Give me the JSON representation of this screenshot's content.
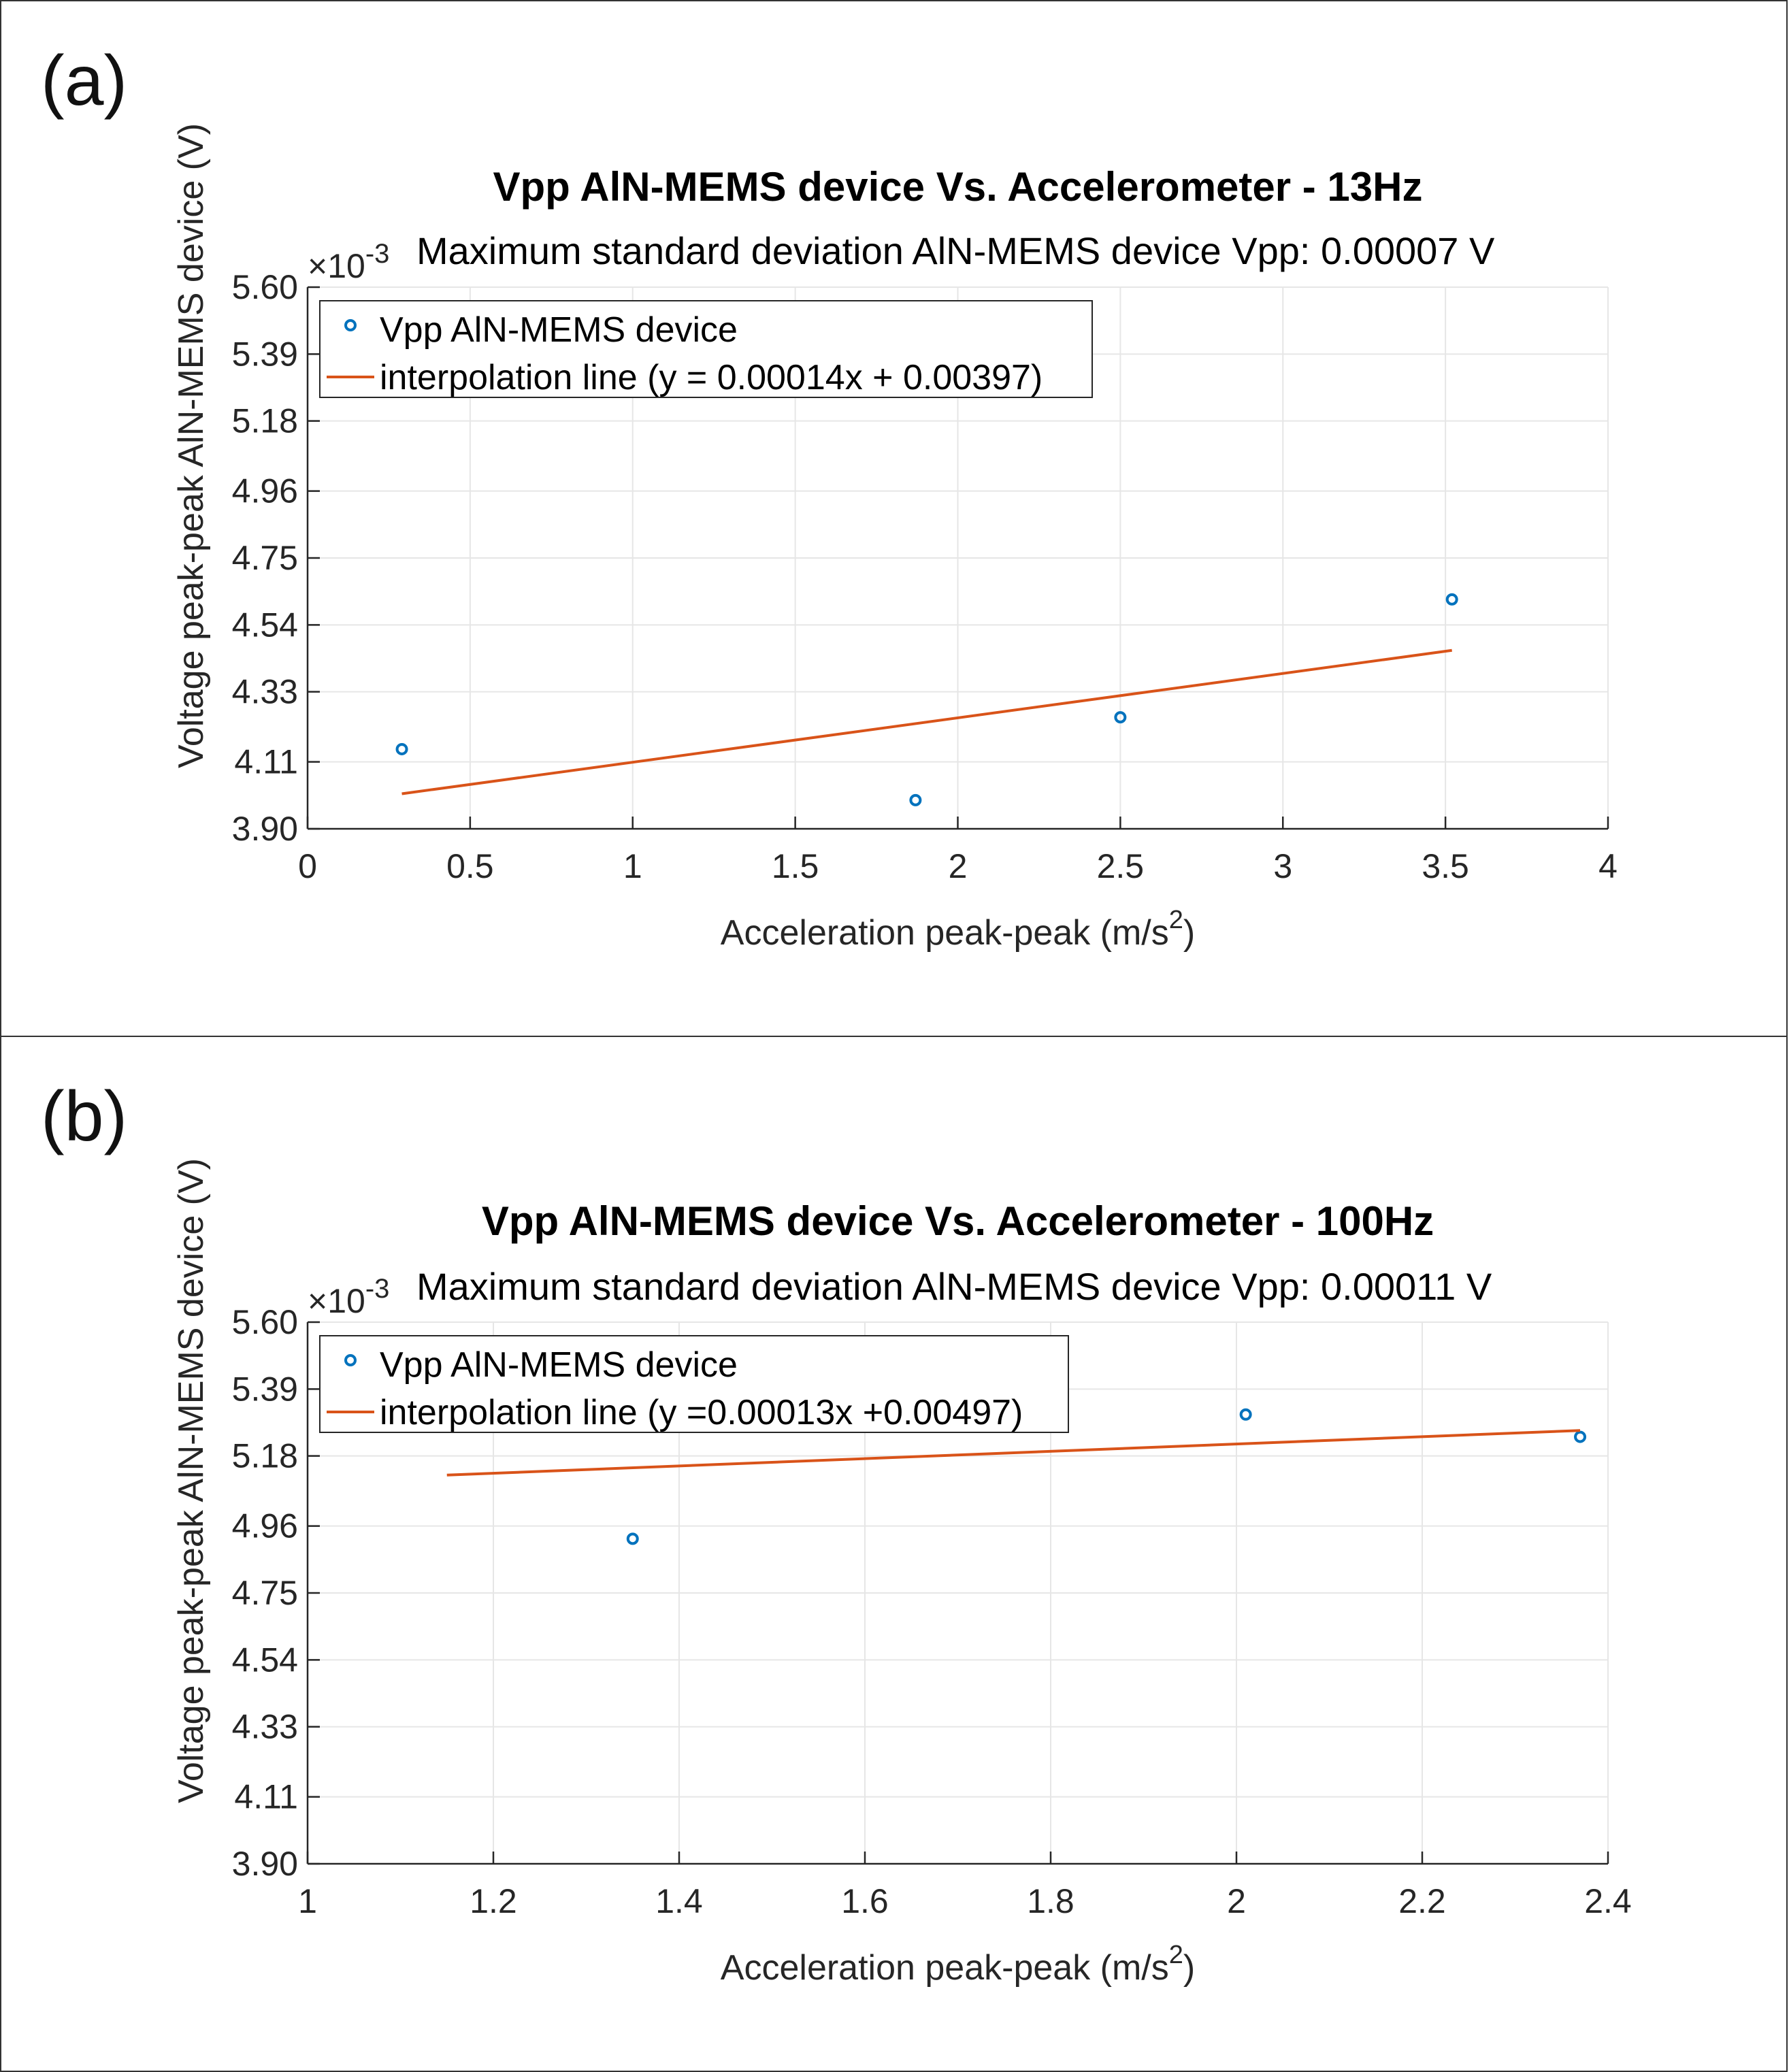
{
  "chart_data": [
    {
      "panel_label": "(a)",
      "type": "scatter",
      "title": "Vpp AlN-MEMS device Vs. Accelerometer - 13Hz",
      "subtitle": "Maximum standard deviation AlN-MEMS device Vpp: 0.00007 V",
      "xlabel": "Acceleration peak-peak (m/s",
      "xlabel_sup": "2",
      "xlabel_end": ")",
      "ylabel": "Voltage peak-peak AlN-MEMS device (V)",
      "y_exponent_base": "×10",
      "y_exponent_power": "-3",
      "xlim": [
        0,
        4
      ],
      "ylim": [
        3.9,
        5.6
      ],
      "xticks": [
        0,
        0.5,
        1,
        1.5,
        2,
        2.5,
        3,
        3.5,
        4
      ],
      "xtick_labels": [
        "0",
        "0.5",
        "1",
        "1.5",
        "2",
        "2.5",
        "3",
        "3.5",
        "4"
      ],
      "yticks": [
        3.9,
        4.11,
        4.33,
        4.54,
        4.75,
        4.96,
        5.18,
        5.39,
        5.6
      ],
      "ytick_labels": [
        "3.90",
        "4.11",
        "4.33",
        "4.54",
        "4.75",
        "4.96",
        "5.18",
        "5.39",
        "5.60"
      ],
      "grid": true,
      "legend_position": "top-left",
      "series": [
        {
          "name": "Vpp AlN-MEMS device",
          "kind": "markers",
          "color": "#0072BD",
          "x": [
            0.29,
            1.87,
            2.5,
            3.52
          ],
          "y": [
            4.15,
            3.99,
            4.25,
            4.62
          ]
        },
        {
          "name": "interpolation line (y = 0.00014x + 0.00397)",
          "kind": "line",
          "color": "#D95319",
          "x": [
            0.29,
            3.52
          ],
          "y": [
            4.01,
            4.46
          ]
        }
      ]
    },
    {
      "panel_label": "(b)",
      "type": "scatter",
      "title": "Vpp AlN-MEMS device Vs. Accelerometer - 100Hz",
      "subtitle": "Maximum standard deviation AlN-MEMS device Vpp: 0.00011 V",
      "xlabel": "Acceleration peak-peak (m/s",
      "xlabel_sup": "2",
      "xlabel_end": ")",
      "ylabel": "Voltage peak-peak AlN-MEMS device (V)",
      "y_exponent_base": "×10",
      "y_exponent_power": "-3",
      "xlim": [
        1,
        2.4
      ],
      "ylim": [
        3.9,
        5.6
      ],
      "xticks": [
        1,
        1.2,
        1.4,
        1.6,
        1.8,
        2,
        2.2,
        2.4
      ],
      "xtick_labels": [
        "1",
        "1.2",
        "1.4",
        "1.6",
        "1.8",
        "2",
        "2.2",
        "2.4"
      ],
      "yticks": [
        3.9,
        4.11,
        4.33,
        4.54,
        4.75,
        4.96,
        5.18,
        5.39,
        5.6
      ],
      "ytick_labels": [
        "3.90",
        "4.11",
        "4.33",
        "4.54",
        "4.75",
        "4.96",
        "5.18",
        "5.39",
        "5.60"
      ],
      "grid": true,
      "legend_position": "top-left",
      "series": [
        {
          "name": "Vpp AlN-MEMS device",
          "kind": "markers",
          "color": "#0072BD",
          "x": [
            1.35,
            2.01,
            2.37
          ],
          "y": [
            4.92,
            5.31,
            5.24
          ]
        },
        {
          "name": "interpolation line (y =0.00013x +0.00497)",
          "kind": "line",
          "color": "#D95319",
          "x": [
            1.15,
            2.37
          ],
          "y": [
            5.12,
            5.26
          ]
        }
      ]
    }
  ]
}
